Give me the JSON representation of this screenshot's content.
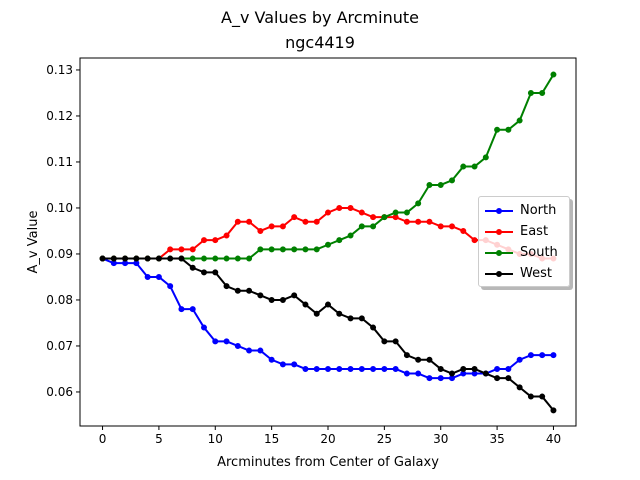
{
  "chart_data": {
    "type": "line",
    "title": "A_v Values by Arcminute",
    "subtitle": "ngc4419",
    "xlabel": "Arcminutes from Center of Galaxy",
    "ylabel": "A_v Value",
    "xlim": [
      -2,
      42
    ],
    "ylim": [
      0.0526,
      0.1326
    ],
    "x_ticks": [
      0,
      5,
      10,
      15,
      20,
      25,
      30,
      35,
      40
    ],
    "x_tick_labels": [
      "0",
      "5",
      "10",
      "15",
      "20",
      "25",
      "30",
      "35",
      "40"
    ],
    "y_ticks": [
      0.06,
      0.07,
      0.08,
      0.09,
      0.1,
      0.11,
      0.12,
      0.13
    ],
    "y_tick_labels": [
      "0.06",
      "0.07",
      "0.08",
      "0.09",
      "0.10",
      "0.11",
      "0.12",
      "0.13"
    ],
    "grid": false,
    "legend_position": "center-right",
    "x": [
      0,
      1,
      2,
      3,
      4,
      5,
      6,
      7,
      8,
      9,
      10,
      11,
      12,
      13,
      14,
      15,
      16,
      17,
      18,
      19,
      20,
      21,
      22,
      23,
      24,
      25,
      26,
      27,
      28,
      29,
      30,
      31,
      32,
      33,
      34,
      35,
      36,
      37,
      38,
      39,
      40
    ],
    "series": [
      {
        "name": "North",
        "color": "#0000ff",
        "values": [
          0.089,
          0.088,
          0.088,
          0.088,
          0.085,
          0.085,
          0.083,
          0.078,
          0.078,
          0.074,
          0.071,
          0.071,
          0.07,
          0.069,
          0.069,
          0.067,
          0.066,
          0.066,
          0.065,
          0.065,
          0.065,
          0.065,
          0.065,
          0.065,
          0.065,
          0.065,
          0.065,
          0.064,
          0.064,
          0.063,
          0.063,
          0.063,
          0.064,
          0.064,
          0.064,
          0.065,
          0.065,
          0.067,
          0.068,
          0.068,
          0.068
        ]
      },
      {
        "name": "East",
        "color": "#ff0000",
        "values": [
          0.089,
          0.089,
          0.089,
          0.089,
          0.089,
          0.089,
          0.091,
          0.091,
          0.091,
          0.093,
          0.093,
          0.094,
          0.097,
          0.097,
          0.095,
          0.096,
          0.096,
          0.098,
          0.097,
          0.097,
          0.099,
          0.1,
          0.1,
          0.099,
          0.098,
          0.098,
          0.098,
          0.097,
          0.097,
          0.097,
          0.096,
          0.096,
          0.095,
          0.093,
          0.093,
          0.092,
          0.091,
          0.09,
          0.09,
          0.089,
          0.089
        ]
      },
      {
        "name": "South",
        "color": "#008000",
        "values": [
          0.089,
          0.089,
          0.089,
          0.089,
          0.089,
          0.089,
          0.089,
          0.089,
          0.089,
          0.089,
          0.089,
          0.089,
          0.089,
          0.089,
          0.091,
          0.091,
          0.091,
          0.091,
          0.091,
          0.091,
          0.092,
          0.093,
          0.094,
          0.096,
          0.096,
          0.098,
          0.099,
          0.099,
          0.101,
          0.105,
          0.105,
          0.106,
          0.109,
          0.109,
          0.111,
          0.117,
          0.117,
          0.119,
          0.125,
          0.125,
          0.129
        ]
      },
      {
        "name": "West",
        "color": "#000000",
        "values": [
          0.089,
          0.089,
          0.089,
          0.089,
          0.089,
          0.089,
          0.089,
          0.089,
          0.087,
          0.086,
          0.086,
          0.083,
          0.082,
          0.082,
          0.081,
          0.08,
          0.08,
          0.081,
          0.079,
          0.077,
          0.079,
          0.077,
          0.076,
          0.076,
          0.074,
          0.071,
          0.071,
          0.068,
          0.067,
          0.067,
          0.065,
          0.064,
          0.065,
          0.065,
          0.064,
          0.063,
          0.063,
          0.061,
          0.059,
          0.059,
          0.056
        ]
      }
    ]
  }
}
